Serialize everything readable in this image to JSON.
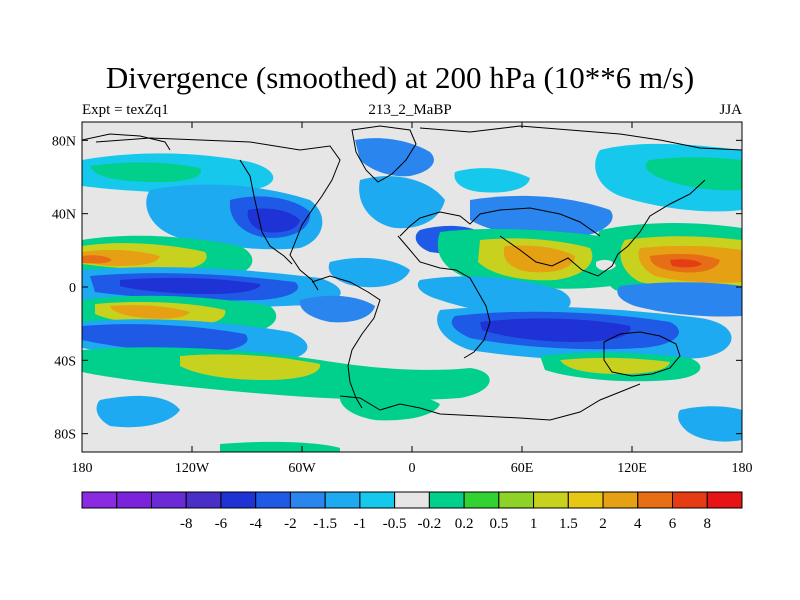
{
  "title": "Divergence (smoothed) at 200 hPa (10**6 m/s)",
  "subtitle_left": "Expt = texZq1",
  "subtitle_center": "213_2_MaBP",
  "subtitle_right": "JJA",
  "colors": {
    "ocean_neutral": "#e6e6e6",
    "coastline": "#000000",
    "frame": "#000000"
  },
  "map": {
    "lat_ticks": [
      {
        "value": 80,
        "label": "80N"
      },
      {
        "value": 40,
        "label": "40N"
      },
      {
        "value": 0,
        "label": "0"
      },
      {
        "value": -40,
        "label": "40S"
      },
      {
        "value": -80,
        "label": "80S"
      }
    ],
    "lon_ticks": [
      {
        "value": -180,
        "label": "180"
      },
      {
        "value": -120,
        "label": "120W"
      },
      {
        "value": -60,
        "label": "60W"
      },
      {
        "value": 0,
        "label": "0"
      },
      {
        "value": 60,
        "label": "60E"
      },
      {
        "value": 120,
        "label": "120E"
      },
      {
        "value": 180,
        "label": "180"
      }
    ],
    "lon_range": [
      -180,
      180
    ],
    "lat_range": [
      -90,
      90
    ]
  },
  "colorbar": {
    "colors": [
      "#8a2be2",
      "#7a22dc",
      "#6a2ad6",
      "#4a2ec8",
      "#1e32d6",
      "#1e5ae6",
      "#2a86ee",
      "#1eaaf0",
      "#16c8ec",
      "#e6e6e6",
      "#00d08c",
      "#32d232",
      "#8ed228",
      "#c8d21e",
      "#e6c814",
      "#e6a014",
      "#e66e14",
      "#e63c14",
      "#e61414"
    ],
    "labels": [
      "-8",
      "-6",
      "-4",
      "-2",
      "-1.5",
      "-1",
      "-0.5",
      "-0.2",
      "0.2",
      "0.5",
      "1",
      "1.5",
      "2",
      "4",
      "6",
      "8"
    ]
  }
}
